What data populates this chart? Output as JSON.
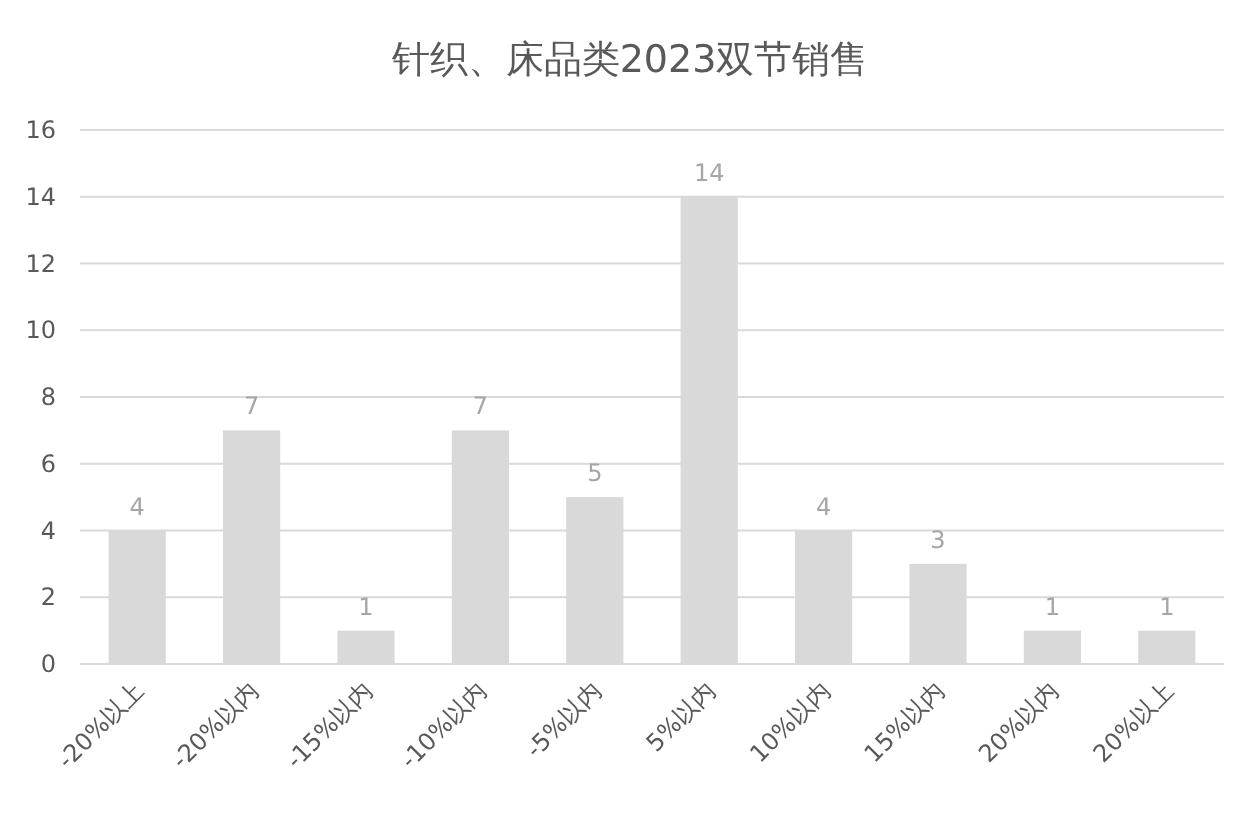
{
  "chart_data": {
    "type": "bar",
    "title": "针织、床品类2023双节销售",
    "categories": [
      "-20%以上",
      "-20%以内",
      "-15%以内",
      "-10%以内",
      "-5%以内",
      "5%以内",
      "10%以内",
      "15%以内",
      "20%以内",
      "20%以上"
    ],
    "values": [
      4,
      7,
      1,
      7,
      5,
      14,
      4,
      3,
      1,
      1
    ],
    "color": "#d9d9d9",
    "ylim": [
      0,
      16
    ],
    "yticks": [
      0,
      2,
      4,
      6,
      8,
      10,
      12,
      14,
      16
    ],
    "grid": "y",
    "data_labels": true
  }
}
